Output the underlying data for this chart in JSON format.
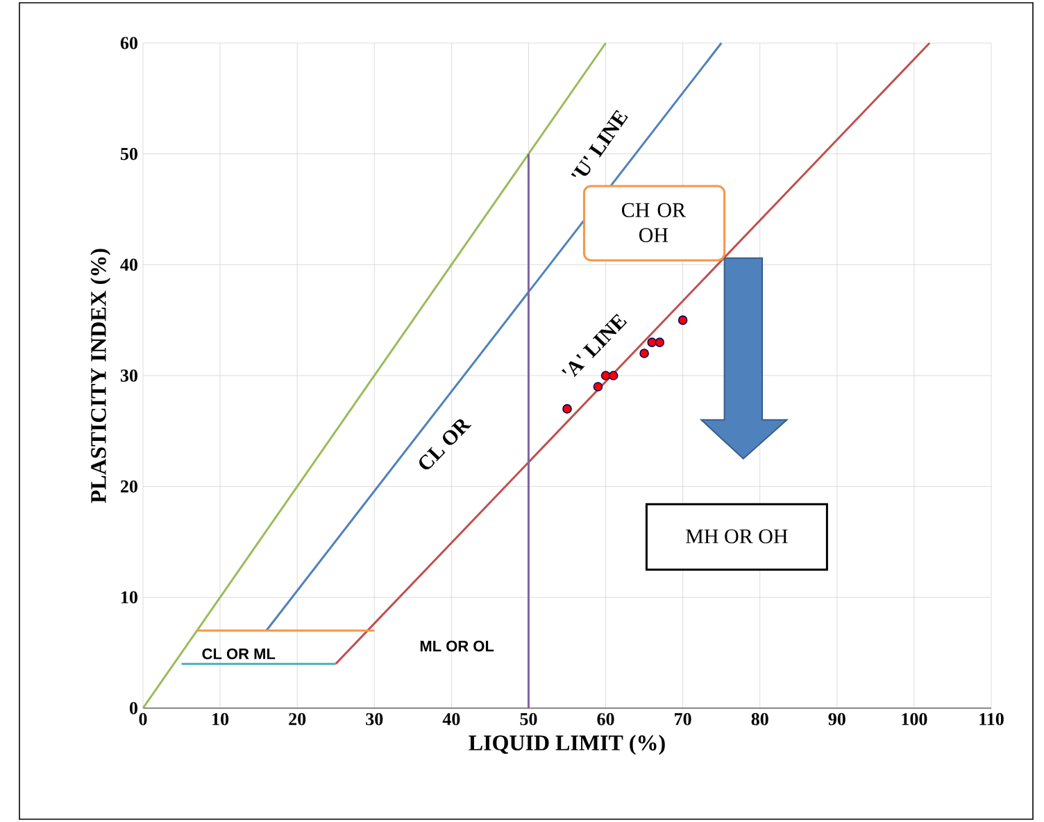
{
  "chart_data": {
    "type": "line",
    "xlabel": "LIQUID LIMIT (%)",
    "ylabel": "PLASTICITY INDEX (%)",
    "xlim": [
      0,
      110
    ],
    "ylim": [
      0,
      60
    ],
    "xticks": [
      0,
      10,
      20,
      30,
      40,
      50,
      60,
      70,
      80,
      90,
      100,
      110
    ],
    "yticks": [
      0,
      10,
      20,
      30,
      40,
      50,
      60
    ],
    "grid": true,
    "marker": "none",
    "series": [
      {
        "color": "#9bbb59",
        "x": [
          0,
          60
        ],
        "values": [
          0,
          60
        ]
      },
      {
        "color": "#4f81bd",
        "x": [
          16,
          75
        ],
        "values": [
          7,
          60
        ]
      },
      {
        "color": "#c0504d",
        "x": [
          25,
          102
        ],
        "values": [
          4,
          60
        ]
      },
      {
        "color": "#f79646",
        "x": [
          7,
          30
        ],
        "values": [
          7,
          7
        ]
      },
      {
        "color": "#4bacc6",
        "x": [
          5,
          25
        ],
        "values": [
          4,
          4
        ]
      },
      {
        "color": "#8064a2",
        "x": [
          50,
          50
        ],
        "values": [
          0,
          50
        ]
      },
      {
        "type": "scatter",
        "marker": "circle",
        "color": "#ff0000",
        "x": [
          55,
          59,
          60,
          61,
          65,
          66,
          67,
          70
        ],
        "values": [
          27,
          29,
          30,
          30,
          32,
          33,
          33,
          35
        ]
      }
    ],
    "annotations": [
      "'U' LINE",
      "'A' LINE",
      "CL OR",
      "CH OR OH",
      "MH OR OH",
      "ML OR OL",
      "CL OR ML"
    ]
  }
}
